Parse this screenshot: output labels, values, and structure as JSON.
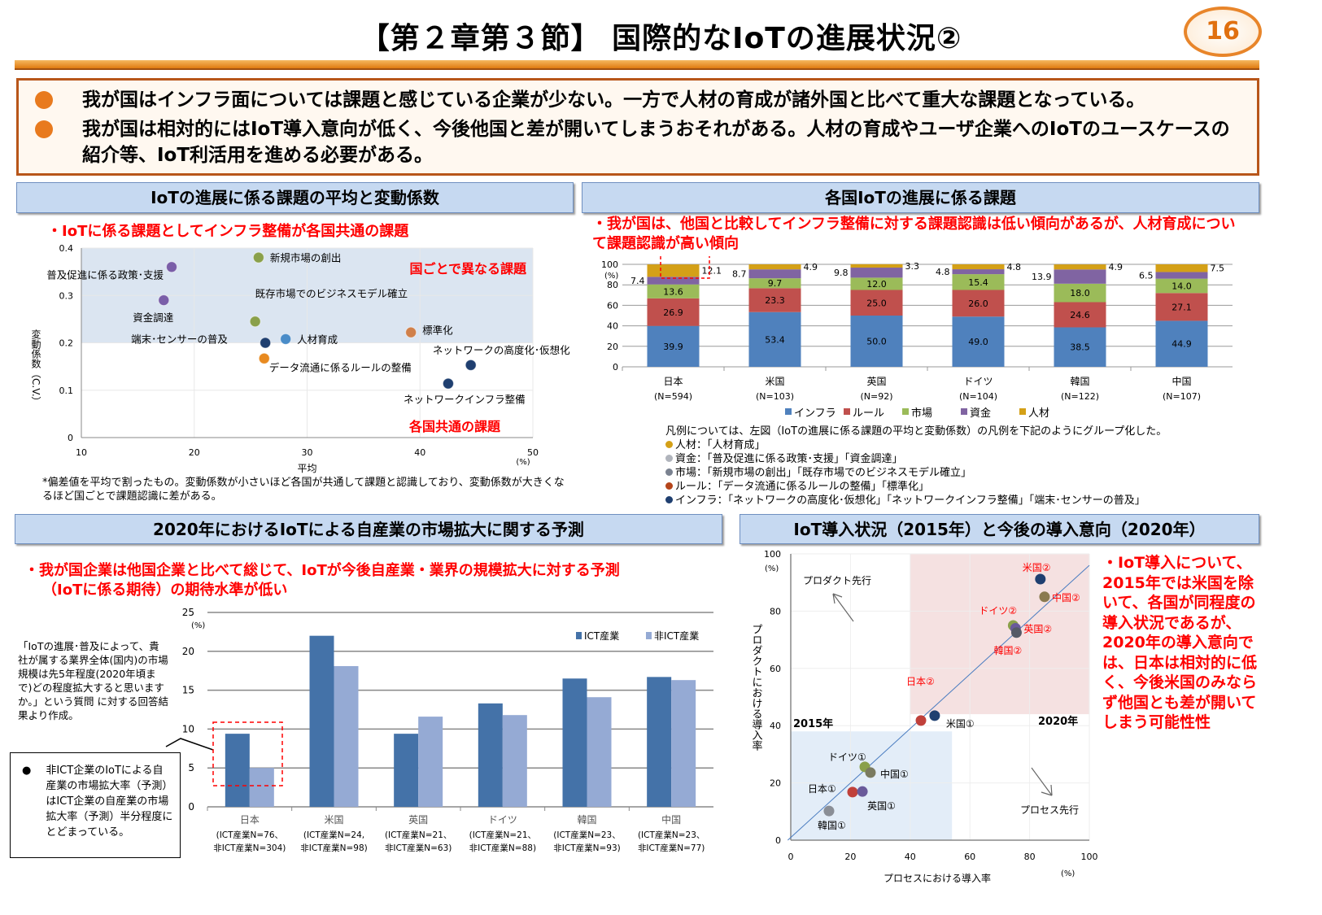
{
  "header": {
    "title": "【第２章第３節】 国際的なIoTの進展状況②",
    "page_number": "16"
  },
  "summary": {
    "bullets": [
      "我が国はインフラ面については課題と感じている企業が少ない。一方で人材の育成が諸外国と比べて重大な課題となっている。",
      "我が国は相対的にはIoT導入意向が低く、今後他国と差が開いてしまうおそれがある。人材の育成やユーザ企業へのIoTのユースケースの紹介等、IoT利活用を進める必要がある。"
    ]
  },
  "sections": {
    "s1": {
      "title": "IoTの進展に係る課題の平均と変動係数",
      "subtitle": "・IoTに係る課題としてインフラ整備が各国共通の課題",
      "footnote": "*偏差値を平均で割ったもの。変動係数が小さいほど各国が共通して課題と認識しており、変動係数が大きくなるほど国ごとで課題認識に差がある。"
    },
    "s2": {
      "title": "各国IoTの進展に係る課題",
      "subtitle": "・我が国は、他国と比較してインフラ整備に対する課題認識は低い傾向があるが、人材育成について課題認識が高い傾向",
      "legend_note": "凡例については、左図（IoTの進展に係る課題の平均と変動係数）の凡例を下記のようにグループ化した。",
      "groups": [
        {
          "text": "人材：「人材育成」",
          "color": "#d4a017"
        },
        {
          "text": "資金：「普及促進に係る政策･支援」「資金調達」",
          "color": "#b0b4bc"
        },
        {
          "text": "市場：「新規市場の創出」「既存市場でのビジネスモデル確立」",
          "color": "#7a8290"
        },
        {
          "text": "ルール：「データ流通に係るルールの整備」「標準化」",
          "color": "#b5451b"
        },
        {
          "text": "インフラ：「ネットワークの高度化･仮想化」「ネットワークインフラ整備」「端末･センサーの普及」",
          "color": "#1f3f70"
        }
      ]
    },
    "s3": {
      "title": "2020年におけるIoTによる自産業の市場拡大に関する予測",
      "subtitle1": "・我が国企業は他国企業と比べて総じて、IoTが今後自産業・業界の規模拡大に対する予測",
      "subtitle2": "（IoTに係る期待）の期待水準が低い",
      "question_note": "「IoTの進展･普及によって、貴社が属する業界全体(国内)の市場規模は先5年程度(2020年頃まで)どの程度拡大すると思いますか。」という質問 に対する回答結果より作成。",
      "box_note": "非ICT企業のIoTによる自産業の市場拡大率（予測）はICT企業の自産業の市場拡大率（予測）半分程度にとどまっている。"
    },
    "s4": {
      "title": "IoT導入状況（2015年）と今後の導入意向（2020年）",
      "note": "・IoT導入について、2015年では米国を除いて、各国が同程度の導入状況であるが、2020年の導入意向では、日本は相対的に低く、今後米国のみならず他国とも差が開いてしまう可能性性"
    }
  },
  "chart_data": [
    {
      "type": "scatter",
      "xlabel": "平均",
      "xunit": "(%)",
      "ylabel": "変動係数（C.V.）",
      "xlim": [
        10,
        50
      ],
      "ylim": [
        0,
        0.4
      ],
      "xticks": [
        10,
        20,
        30,
        40,
        50
      ],
      "yticks": [
        0,
        0.1,
        0.2,
        0.3,
        0.4
      ],
      "region_labels": {
        "upper": "国ごとで異なる課題",
        "lower": "各国共通の課題"
      },
      "region_threshold": 0.2,
      "points": [
        {
          "label": "普及促進に係る政策･支援",
          "x": 18.0,
          "y": 0.36,
          "color": "#7a5ea8"
        },
        {
          "label": "新規市場の創出",
          "x": 25.7,
          "y": 0.38,
          "color": "#8aa04a"
        },
        {
          "label": "資金調達",
          "x": 17.3,
          "y": 0.29,
          "color": "#7a5ea8"
        },
        {
          "label": "既存市場でのビジネスモデル確立",
          "x": 25.4,
          "y": 0.245,
          "color": "#8aa04a"
        },
        {
          "label": "人材育成",
          "x": 28.1,
          "y": 0.208,
          "color": "#4a8cc8"
        },
        {
          "label": "標準化",
          "x": 39.2,
          "y": 0.222,
          "color": "#d0804a"
        },
        {
          "label": "端末･センサーの普及",
          "x": 26.3,
          "y": 0.2,
          "color": "#1f3f70"
        },
        {
          "label": "データ流通に係るルールの整備",
          "x": 26.2,
          "y": 0.167,
          "color": "#e88a20"
        },
        {
          "label": "ネットワークの高度化･仮想化",
          "x": 44.5,
          "y": 0.153,
          "color": "#1f3f70"
        },
        {
          "label": "ネットワークインフラ整備",
          "x": 42.5,
          "y": 0.114,
          "color": "#1f3f70"
        }
      ]
    },
    {
      "type": "bar",
      "stacked": true,
      "yunit": "(%)",
      "ylim": [
        0,
        100
      ],
      "yticks": [
        0,
        20,
        40,
        60,
        80,
        100
      ],
      "categories": [
        "日本",
        "米国",
        "英国",
        "ドイツ",
        "韓国",
        "中国"
      ],
      "sublabels": [
        "(N=594)",
        "(N=103)",
        "(N=92)",
        "(N=104)",
        "(N=122)",
        "(N=107)"
      ],
      "series": [
        {
          "name": "インフラ",
          "color": "#4f81bd",
          "values": [
            39.9,
            53.4,
            50.0,
            49.0,
            38.5,
            44.9
          ]
        },
        {
          "name": "ルール",
          "color": "#c0504d",
          "values": [
            26.9,
            23.3,
            25.0,
            26.0,
            24.6,
            27.1
          ]
        },
        {
          "name": "市場",
          "color": "#9bbb59",
          "values": [
            13.6,
            9.7,
            12.0,
            15.4,
            18.0,
            14.0
          ]
        },
        {
          "name": "資金",
          "color": "#8064a2",
          "values": [
            7.4,
            8.7,
            9.8,
            4.8,
            13.9,
            6.5
          ]
        },
        {
          "name": "人材",
          "color": "#d4a017",
          "values": [
            12.1,
            4.9,
            3.3,
            4.8,
            4.9,
            7.5
          ]
        }
      ],
      "legend": "bottom"
    },
    {
      "type": "bar",
      "yunit": "(%)",
      "ylim": [
        0,
        25
      ],
      "yticks": [
        0,
        5,
        10,
        15,
        20,
        25
      ],
      "categories": [
        "日本",
        "米国",
        "英国",
        "ドイツ",
        "韓国",
        "中国"
      ],
      "sublabels": [
        [
          "(ICT産業N=76、",
          "非ICT産業N=304)"
        ],
        [
          "(ICT産業N=24,",
          "非ICT産業N=98)"
        ],
        [
          "(ICT産業N=21、",
          "非ICT産業N=63)"
        ],
        [
          "(ICT産業N=21、",
          "非ICT産業N=88)"
        ],
        [
          "(ICT産業N=23、",
          "非ICT産業N=93)"
        ],
        [
          "(ICT産業N=23、",
          "非ICT産業N=77)"
        ]
      ],
      "series": [
        {
          "name": "ICT産業",
          "color": "#4472a8",
          "values": [
            9.4,
            22.0,
            9.4,
            13.3,
            16.5,
            16.7
          ]
        },
        {
          "name": "非ICT産業",
          "color": "#95aad4",
          "values": [
            5.0,
            18.1,
            11.6,
            11.8,
            14.1,
            16.3
          ]
        }
      ],
      "legend": "top-right"
    },
    {
      "type": "scatter",
      "xlabel": "プロセスにおける導入率",
      "ylabel": "プロダクトにおける導入率",
      "xunit": "(%)",
      "yunit": "(%)",
      "xlim": [
        0,
        100
      ],
      "ylim": [
        0,
        100
      ],
      "xticks": [
        0,
        20,
        40,
        60,
        80,
        100
      ],
      "yticks": [
        0,
        20,
        40,
        60,
        80,
        100
      ],
      "annotations": {
        "product_first": "プロダクト先行",
        "process_first": "プロセス先行",
        "year2015": "2015年",
        "year2020": "2020年"
      },
      "points": [
        {
          "label": "米国②",
          "x": 83.6,
          "y": 91.2,
          "color": "#1f3f70",
          "red": true
        },
        {
          "label": "中国②",
          "x": 85.0,
          "y": 85.0,
          "color": "#8a7a50",
          "red": true
        },
        {
          "label": "ドイツ②",
          "x": 74.5,
          "y": 75.0,
          "color": "#8aa04a",
          "red": true
        },
        {
          "label": "英国②",
          "x": 75.3,
          "y": 74.0,
          "color": "#6a5a9a",
          "red": true
        },
        {
          "label": "韓国②",
          "x": 75.6,
          "y": 72.5,
          "color": "#555a66",
          "red": true
        },
        {
          "label": "日本②",
          "x": 43.6,
          "y": 41.8,
          "color": "#c0403a",
          "red": true
        },
        {
          "label": "米国①",
          "x": 48.2,
          "y": 43.5,
          "color": "#1f3f70",
          "red": false
        },
        {
          "label": "ドイツ①",
          "x": 24.8,
          "y": 25.6,
          "color": "#8aa04a",
          "red": false
        },
        {
          "label": "中国①",
          "x": 26.7,
          "y": 23.6,
          "color": "#7a7a60",
          "red": false
        },
        {
          "label": "日本①",
          "x": 20.7,
          "y": 16.8,
          "color": "#c0403a",
          "red": false
        },
        {
          "label": "英国①",
          "x": 24.0,
          "y": 17.0,
          "color": "#6a5a9a",
          "red": false
        },
        {
          "label": "韓国①",
          "x": 12.8,
          "y": 10.2,
          "color": "#8a8e96",
          "red": false
        }
      ]
    }
  ]
}
